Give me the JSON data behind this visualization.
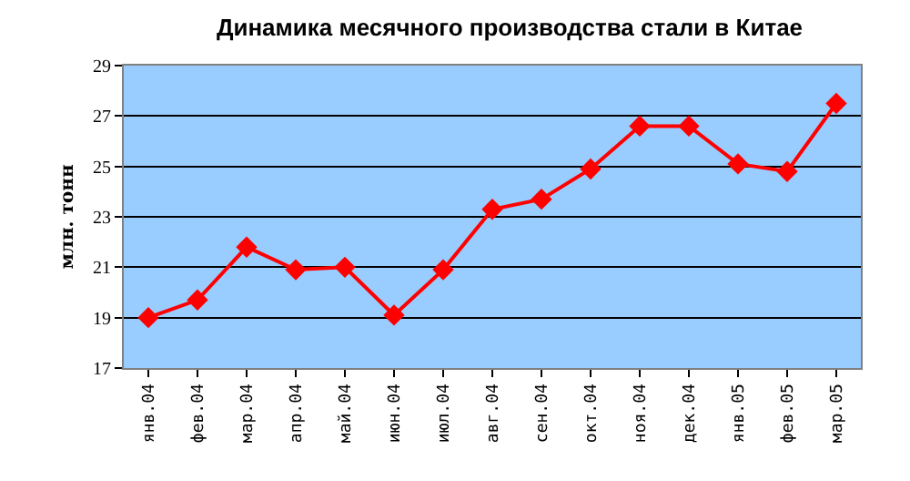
{
  "chart_data": {
    "type": "line",
    "title": "Динамика месячного производства стали в Китае",
    "ylabel": "млн. тонн",
    "categories": [
      "янв.04",
      "фев.04",
      "мар.04",
      "апр.04",
      "май.04",
      "июн.04",
      "июл.04",
      "авг.04",
      "сен.04",
      "окт.04",
      "ноя.04",
      "дек.04",
      "янв.05",
      "фев.05",
      "мар.05"
    ],
    "series": [
      {
        "color": "#ff0000",
        "values": [
          19.0,
          19.7,
          21.8,
          20.9,
          21.0,
          19.1,
          20.9,
          23.3,
          23.7,
          24.9,
          26.6,
          26.6,
          25.1,
          24.8,
          27.5
        ]
      }
    ],
    "ylim": [
      17,
      29
    ],
    "yticks": [
      17,
      19,
      21,
      23,
      25,
      27,
      29
    ],
    "grid": "y",
    "marker": "diamond",
    "line_style": "solid"
  }
}
